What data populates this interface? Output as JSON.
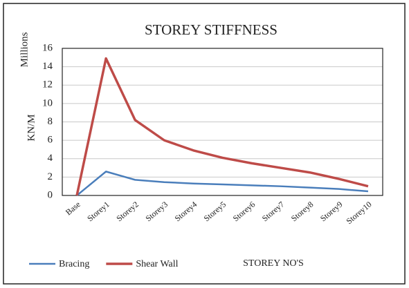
{
  "chart_data": {
    "type": "line",
    "title": "STOREY STIFFNESS",
    "x_label": "STOREY NO'S",
    "y_label": "KN/M",
    "y_unit_label": "Millions",
    "categories": [
      "Base",
      "Storey1",
      "Storey2",
      "Storey3",
      "Storey4",
      "Storey5",
      "Storey6",
      "Storey7",
      "Storey8",
      "Storey9",
      "Storey10"
    ],
    "series": [
      {
        "name": "Bracing",
        "color": "#4a7ebb",
        "values": [
          0,
          2.6,
          1.7,
          1.45,
          1.3,
          1.2,
          1.1,
          1.0,
          0.85,
          0.7,
          0.45
        ]
      },
      {
        "name": "Shear Wall",
        "color": "#be4b48",
        "values": [
          0,
          14.9,
          8.2,
          6.0,
          4.9,
          4.1,
          3.5,
          3.0,
          2.5,
          1.8,
          1.0
        ]
      }
    ],
    "ylim": [
      0,
      16
    ],
    "yticks": [
      0,
      2,
      4,
      6,
      8,
      10,
      12,
      14,
      16
    ],
    "grid": true,
    "legend": "bottom"
  }
}
